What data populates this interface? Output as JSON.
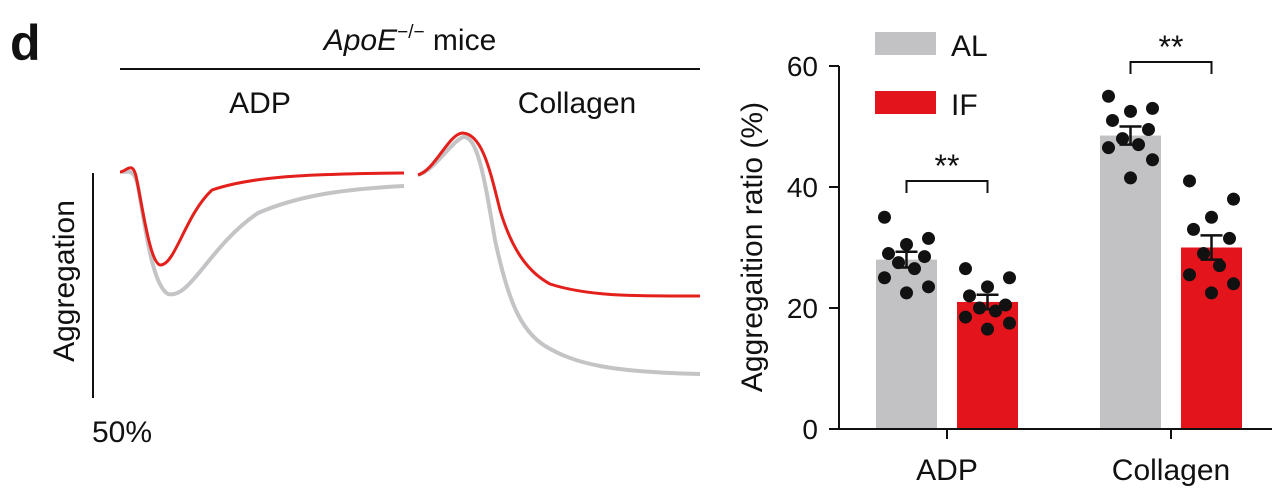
{
  "panel_label": "d",
  "header": {
    "italic_part": "ApoE",
    "superscript": "−/−",
    "suffix": " mice"
  },
  "traces": {
    "labels": [
      "ADP",
      "Collagen"
    ],
    "y_label": "Aggregation",
    "scale_label": "50%",
    "colors": {
      "AL": "#c4c4c6",
      "IF": "#e3201b"
    }
  },
  "chart_data": {
    "type": "bar",
    "categories": [
      "ADP",
      "Collagen"
    ],
    "ylabel": "Aggregaition ratio (%)",
    "ylim": [
      0,
      60
    ],
    "yticks": [
      0,
      20,
      40,
      60
    ],
    "legend_position": "top-left",
    "series": [
      {
        "name": "AL",
        "color": "#c2c1c3",
        "values": [
          28,
          48.5
        ],
        "sem": [
          1.3,
          1.5
        ],
        "points": [
          [
            35,
            31.5,
            30.5,
            29,
            28.5,
            27.5,
            26.5,
            25,
            23.5,
            22.5
          ],
          [
            55,
            53,
            52.5,
            51,
            49.5,
            48,
            47,
            46.5,
            44.5,
            41.5
          ]
        ]
      },
      {
        "name": "IF",
        "color": "#e3141c",
        "values": [
          21,
          30
        ],
        "sem": [
          1.2,
          2.0
        ],
        "points": [
          [
            26.5,
            25,
            23.5,
            22,
            20.5,
            20,
            19.5,
            18.5,
            17.5,
            16.5
          ],
          [
            41,
            38,
            35,
            33,
            31.5,
            29,
            27,
            25.5,
            24,
            22.5
          ]
        ]
      }
    ],
    "significance": [
      "**",
      "**"
    ]
  }
}
